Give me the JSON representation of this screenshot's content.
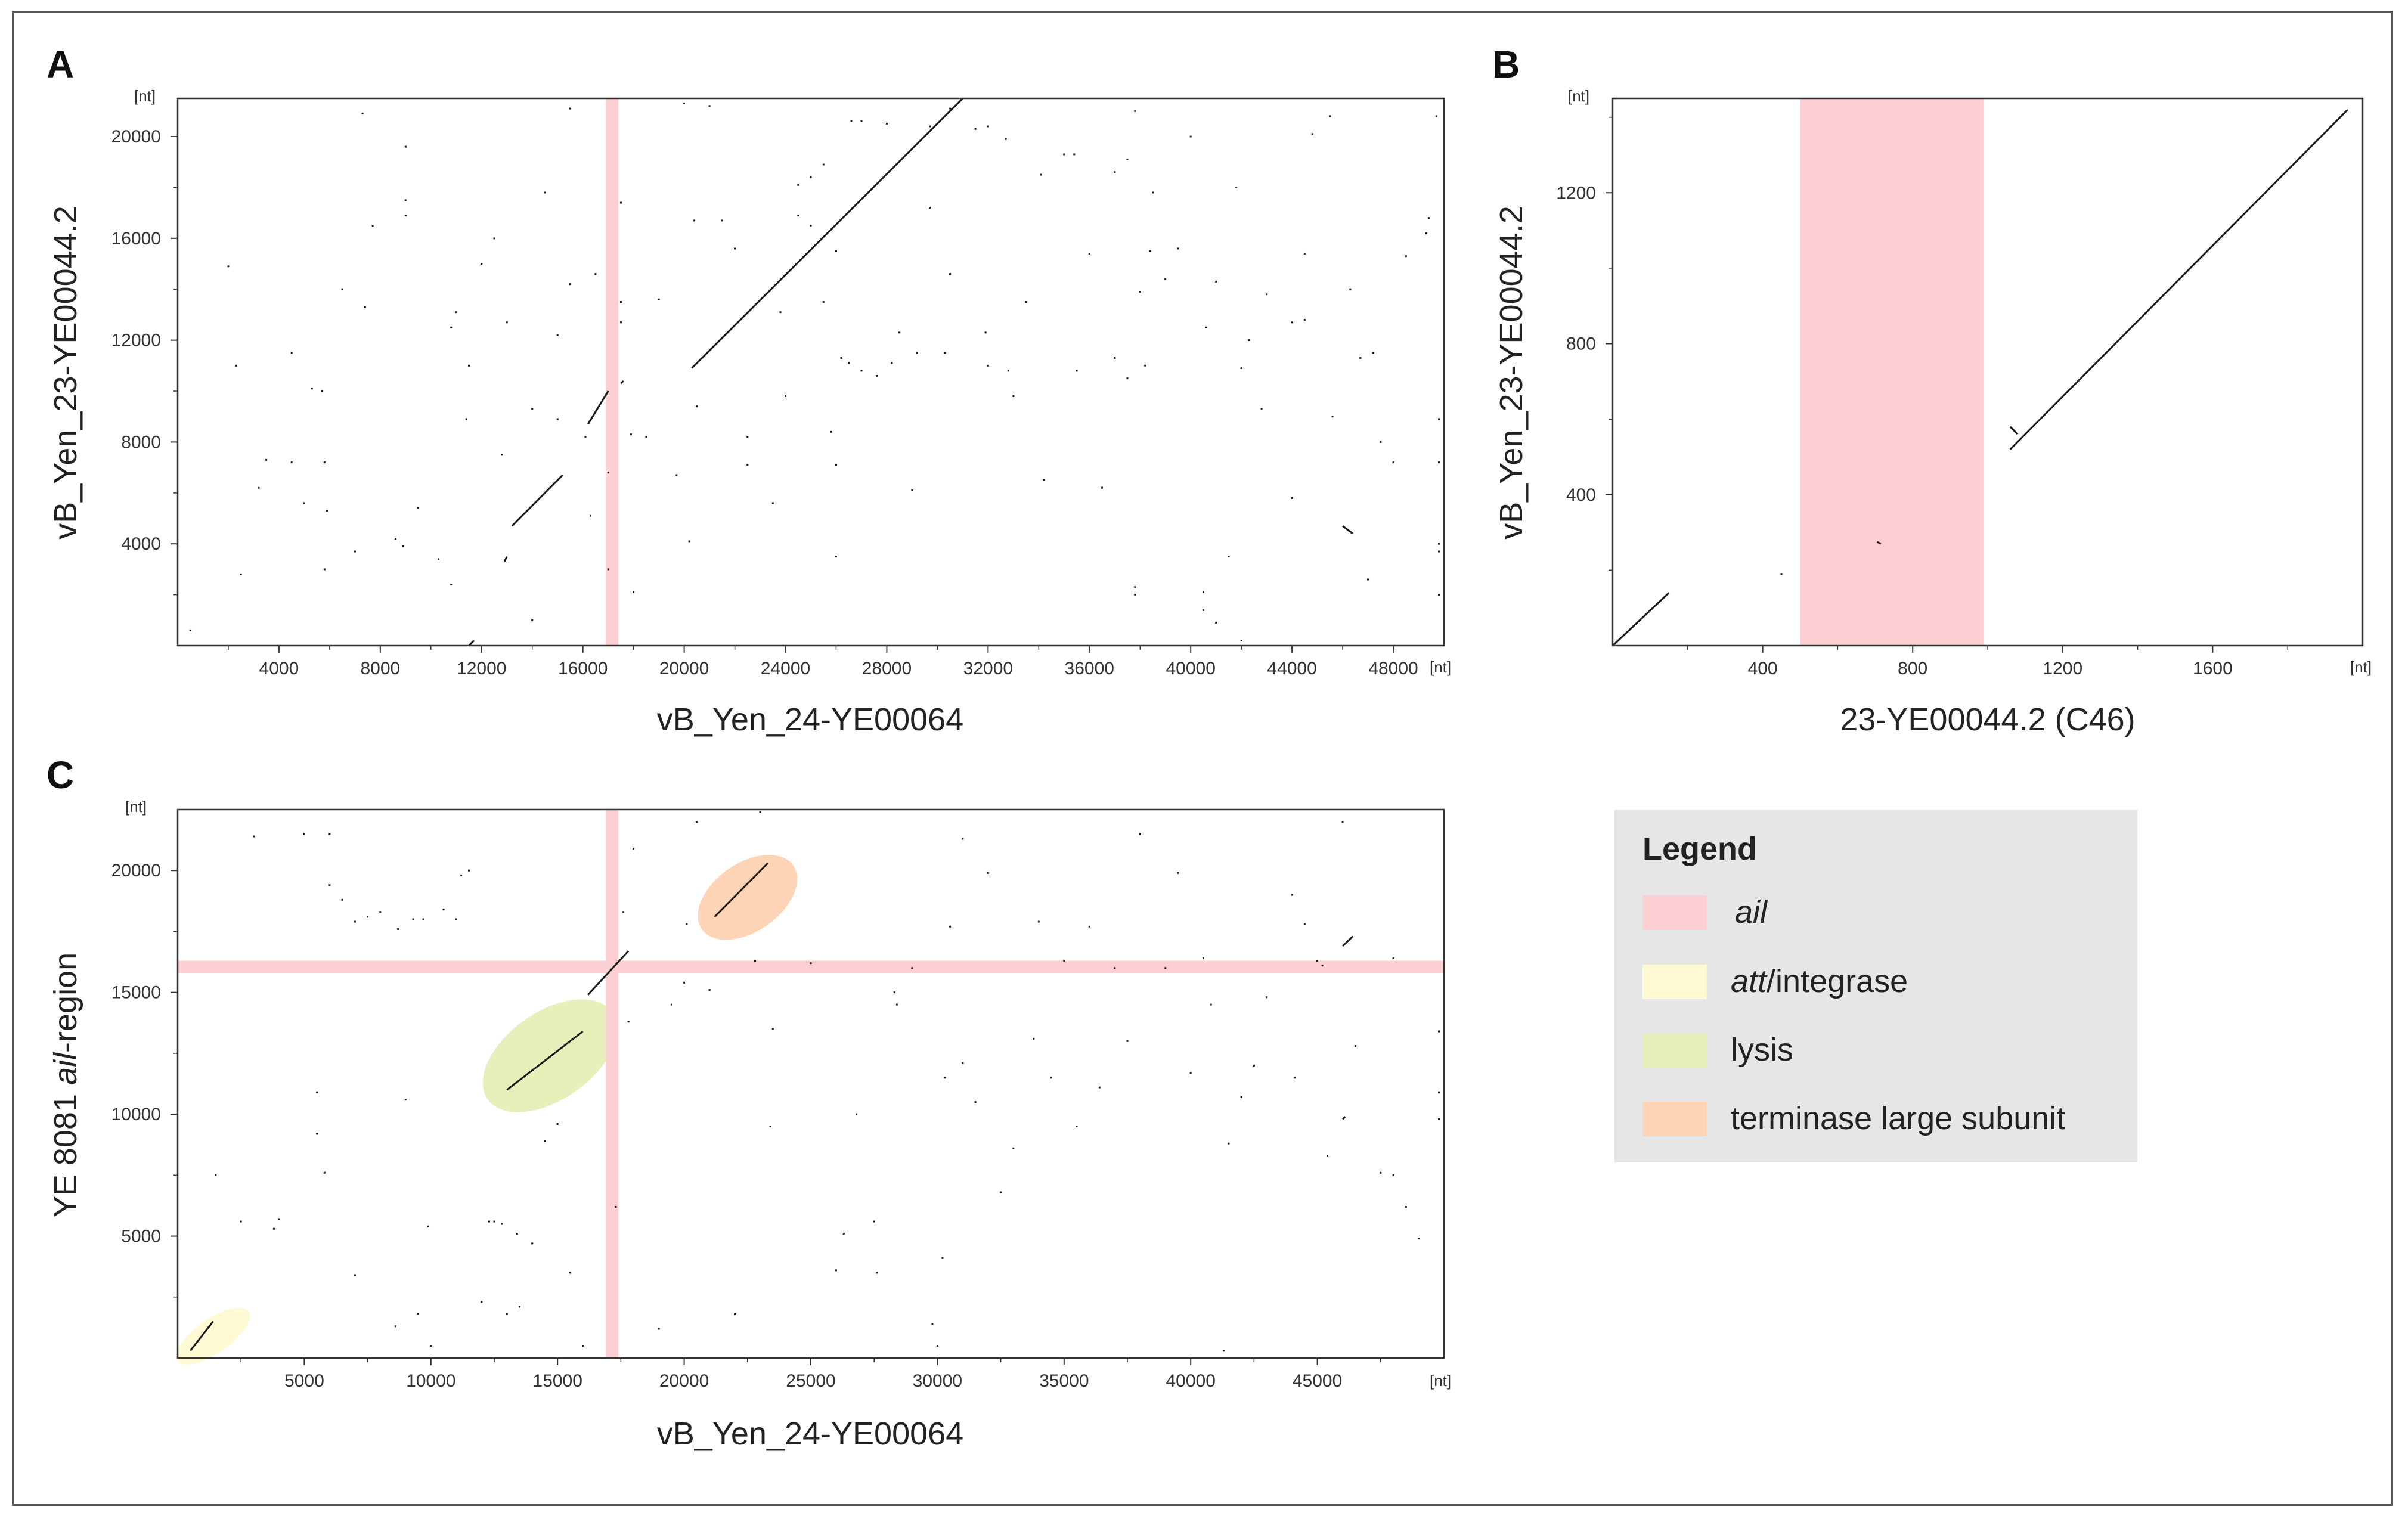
{
  "colors": {
    "ail": "#fccfd3",
    "att_integrase": "#fff9d4",
    "lysis": "#e9efbb",
    "terminase": "#fdd5b6",
    "legend_bg": "#e6e6e6",
    "line": "#1a1a1a"
  },
  "legend": {
    "title": "Legend",
    "items": [
      {
        "key": "ail",
        "label": "ail",
        "italic": true
      },
      {
        "key": "att_integrase",
        "label_italic": "att",
        "label_rest": "/integrase"
      },
      {
        "key": "lysis",
        "label": "lysis"
      },
      {
        "key": "terminase",
        "label": "terminase large subunit"
      }
    ]
  },
  "chart_data": [
    {
      "panel": "A",
      "type": "scatter",
      "title": "",
      "xlabel": "vB_Yen_24-YE00064",
      "ylabel": "vB_Yen_23-YE00044.2",
      "xunit": "[nt]",
      "yunit": "[nt]",
      "xlim": [
        0,
        50000
      ],
      "ylim": [
        0,
        21500
      ],
      "xticks": [
        4000,
        8000,
        12000,
        16000,
        20000,
        24000,
        28000,
        32000,
        36000,
        40000,
        44000,
        48000
      ],
      "yticks": [
        4000,
        8000,
        12000,
        16000,
        20000
      ],
      "regions": [
        {
          "axis": "x",
          "from": 16900,
          "to": 17400,
          "key": "ail"
        }
      ],
      "segments": [
        [
          20300,
          10900,
          31000,
          21500
        ],
        [
          16200,
          8700,
          17000,
          10000
        ],
        [
          13200,
          4700,
          15200,
          6700
        ],
        [
          12900,
          3300,
          13000,
          3500
        ],
        [
          11500,
          0,
          11700,
          200
        ],
        [
          46000,
          4700,
          46400,
          4400
        ],
        [
          17500,
          10300,
          17600,
          10400
        ]
      ],
      "dots": [
        [
          500,
          600
        ],
        [
          2000,
          14900
        ],
        [
          2300,
          11000
        ],
        [
          2500,
          2800
        ],
        [
          3200,
          6200
        ],
        [
          3500,
          7300
        ],
        [
          4500,
          11500
        ],
        [
          4500,
          7200
        ],
        [
          5000,
          5600
        ],
        [
          5300,
          10100
        ],
        [
          5700,
          10000
        ],
        [
          5800,
          3000
        ],
        [
          5900,
          5300
        ],
        [
          5800,
          7200
        ],
        [
          6500,
          14000
        ],
        [
          7000,
          3700
        ],
        [
          7300,
          20900
        ],
        [
          7400,
          13300
        ],
        [
          7700,
          16500
        ],
        [
          8600,
          4200
        ],
        [
          8900,
          3900
        ],
        [
          9000,
          16900
        ],
        [
          9000,
          17500
        ],
        [
          9000,
          19600
        ],
        [
          9500,
          5400
        ],
        [
          10300,
          3400
        ],
        [
          10800,
          2400
        ],
        [
          10800,
          12500
        ],
        [
          11000,
          13100
        ],
        [
          11400,
          8900
        ],
        [
          11500,
          11000
        ],
        [
          12000,
          15000
        ],
        [
          12500,
          16000
        ],
        [
          12800,
          7500
        ],
        [
          13000,
          12700
        ],
        [
          14000,
          9300
        ],
        [
          14000,
          1000
        ],
        [
          14500,
          17800
        ],
        [
          15000,
          12200
        ],
        [
          15000,
          8900
        ],
        [
          15500,
          14200
        ],
        [
          15500,
          21100
        ],
        [
          16100,
          8200
        ],
        [
          16300,
          5100
        ],
        [
          16500,
          14600
        ],
        [
          17000,
          3000
        ],
        [
          17000,
          6800
        ],
        [
          17500,
          13500
        ],
        [
          17500,
          17400
        ],
        [
          17500,
          12700
        ],
        [
          17900,
          8300
        ],
        [
          18000,
          2100
        ],
        [
          18500,
          8200
        ],
        [
          19000,
          13600
        ],
        [
          19700,
          6700
        ],
        [
          20000,
          21300
        ],
        [
          20200,
          4100
        ],
        [
          20400,
          16700
        ],
        [
          20500,
          9400
        ],
        [
          21000,
          21200
        ],
        [
          21500,
          16700
        ],
        [
          22000,
          15600
        ],
        [
          22500,
          8200
        ],
        [
          22500,
          7100
        ],
        [
          23500,
          5600
        ],
        [
          23800,
          13100
        ],
        [
          24000,
          9800
        ],
        [
          24500,
          18100
        ],
        [
          24500,
          16900
        ],
        [
          25000,
          18400
        ],
        [
          25000,
          16500
        ],
        [
          25500,
          18900
        ],
        [
          25500,
          13500
        ],
        [
          25800,
          8400
        ],
        [
          26000,
          3500
        ],
        [
          26000,
          7100
        ],
        [
          26000,
          15500
        ],
        [
          26200,
          11300
        ],
        [
          26500,
          11100
        ],
        [
          26600,
          20600
        ],
        [
          27000,
          20600
        ],
        [
          27000,
          10800
        ],
        [
          27600,
          10600
        ],
        [
          28000,
          20500
        ],
        [
          28200,
          11100
        ],
        [
          28500,
          12300
        ],
        [
          29000,
          6100
        ],
        [
          29200,
          11500
        ],
        [
          29700,
          20400
        ],
        [
          29700,
          17200
        ],
        [
          30300,
          11500
        ],
        [
          30500,
          21100
        ],
        [
          30500,
          14600
        ],
        [
          31500,
          20300
        ],
        [
          31900,
          12300
        ],
        [
          32000,
          11000
        ],
        [
          32000,
          20400
        ],
        [
          32700,
          19900
        ],
        [
          32800,
          10800
        ],
        [
          33000,
          9800
        ],
        [
          33500,
          13500
        ],
        [
          34100,
          18500
        ],
        [
          34200,
          6500
        ],
        [
          35000,
          19300
        ],
        [
          35400,
          19300
        ],
        [
          35500,
          10800
        ],
        [
          36000,
          15400
        ],
        [
          36500,
          6200
        ],
        [
          37000,
          18600
        ],
        [
          37000,
          11300
        ],
        [
          37500,
          19100
        ],
        [
          37500,
          10500
        ],
        [
          37800,
          21000
        ],
        [
          37800,
          2000
        ],
        [
          37800,
          2300
        ],
        [
          38500,
          17800
        ],
        [
          38000,
          13900
        ],
        [
          38200,
          11000
        ],
        [
          38400,
          15500
        ],
        [
          39000,
          14400
        ],
        [
          39500,
          15600
        ],
        [
          40000,
          20000
        ],
        [
          40500,
          2100
        ],
        [
          40500,
          1400
        ],
        [
          40600,
          12500
        ],
        [
          41000,
          14300
        ],
        [
          41000,
          900
        ],
        [
          41500,
          3500
        ],
        [
          41800,
          18000
        ],
        [
          42000,
          10900
        ],
        [
          42000,
          200
        ],
        [
          42300,
          12000
        ],
        [
          42800,
          9300
        ],
        [
          43000,
          13800
        ],
        [
          44000,
          5800
        ],
        [
          44000,
          12700
        ],
        [
          44500,
          15400
        ],
        [
          44500,
          12800
        ],
        [
          44800,
          20100
        ],
        [
          45500,
          20800
        ],
        [
          45600,
          9000
        ],
        [
          46300,
          14000
        ],
        [
          46700,
          11300
        ],
        [
          47000,
          2600
        ],
        [
          47200,
          11500
        ],
        [
          47500,
          8000
        ],
        [
          48000,
          7200
        ],
        [
          48500,
          15300
        ],
        [
          49300,
          16200
        ],
        [
          49800,
          8900
        ],
        [
          49800,
          4000
        ],
        [
          49800,
          3700
        ],
        [
          49800,
          2000
        ],
        [
          49800,
          7200
        ],
        [
          49700,
          20800
        ],
        [
          49400,
          16800
        ]
      ]
    },
    {
      "panel": "B",
      "type": "scatter",
      "title": "",
      "xlabel": "23-YE00044.2 (C46)",
      "ylabel": "vB_Yen_23-YE00044.2",
      "xunit": "[nt]",
      "yunit": "[nt]",
      "xlim": [
        0,
        2000
      ],
      "ylim": [
        0,
        1450
      ],
      "xticks": [
        400,
        800,
        1200,
        1600
      ],
      "yticks": [
        400,
        800,
        1200
      ],
      "regions": [
        {
          "axis": "x",
          "from": 500,
          "to": 990,
          "key": "ail"
        }
      ],
      "segments": [
        [
          0,
          0,
          150,
          140
        ],
        [
          1060,
          520,
          1960,
          1420
        ],
        [
          1060,
          580,
          1080,
          560
        ],
        [
          705,
          275,
          715,
          270
        ]
      ],
      "dots": [
        [
          450,
          190
        ]
      ]
    },
    {
      "panel": "C",
      "type": "scatter",
      "title": "",
      "xlabel": "vB_Yen_24-YE00064",
      "ylabel_prefix": "YE 8081 ",
      "ylabel_italic": "ail",
      "ylabel_suffix": "-region",
      "xunit": "[nt]",
      "yunit": "[nt]",
      "xlim": [
        0,
        50000
      ],
      "ylim": [
        0,
        22500
      ],
      "xticks": [
        5000,
        10000,
        15000,
        20000,
        25000,
        30000,
        35000,
        40000,
        45000
      ],
      "yticks": [
        5000,
        10000,
        15000,
        20000
      ],
      "regions": [
        {
          "axis": "x",
          "from": 16900,
          "to": 17400,
          "key": "ail"
        },
        {
          "axis": "y",
          "from": 15800,
          "to": 16300,
          "key": "ail"
        }
      ],
      "highlights": [
        {
          "key": "att_integrase",
          "cx": 1400,
          "cy": 900,
          "rx": 1700,
          "ry": 700
        },
        {
          "key": "lysis",
          "cx": 14700,
          "cy": 12400,
          "rx": 3000,
          "ry": 1800
        },
        {
          "key": "terminase",
          "cx": 22500,
          "cy": 18900,
          "rx": 2200,
          "ry": 1400
        }
      ],
      "segments": [
        [
          21200,
          18100,
          23300,
          20300
        ],
        [
          13000,
          11000,
          16000,
          13400
        ],
        [
          16200,
          14900,
          17800,
          16700
        ],
        [
          500,
          300,
          1400,
          1500
        ],
        [
          46000,
          16900,
          46400,
          17300
        ],
        [
          46000,
          9800,
          46100,
          9900
        ]
      ],
      "dots": [
        [
          1500,
          7500
        ],
        [
          2500,
          5600
        ],
        [
          3000,
          21400
        ],
        [
          3800,
          5300
        ],
        [
          4000,
          5700
        ],
        [
          5000,
          21500
        ],
        [
          5500,
          10900
        ],
        [
          5500,
          9200
        ],
        [
          5800,
          7600
        ],
        [
          6000,
          21500
        ],
        [
          6000,
          19400
        ],
        [
          6500,
          18800
        ],
        [
          7000,
          17900
        ],
        [
          7000,
          3400
        ],
        [
          7500,
          18100
        ],
        [
          8000,
          18300
        ],
        [
          8600,
          1300
        ],
        [
          8700,
          17600
        ],
        [
          9000,
          10600
        ],
        [
          9300,
          18000
        ],
        [
          9500,
          1800
        ],
        [
          9700,
          18000
        ],
        [
          9900,
          5400
        ],
        [
          10000,
          500
        ],
        [
          10500,
          18400
        ],
        [
          11000,
          18000
        ],
        [
          11200,
          19800
        ],
        [
          11500,
          20000
        ],
        [
          12000,
          2300
        ],
        [
          12300,
          5600
        ],
        [
          12500,
          5600
        ],
        [
          12800,
          5500
        ],
        [
          13000,
          1800
        ],
        [
          13400,
          5100
        ],
        [
          13500,
          2100
        ],
        [
          14000,
          4700
        ],
        [
          14500,
          8900
        ],
        [
          15000,
          9600
        ],
        [
          15500,
          3500
        ],
        [
          16000,
          500
        ],
        [
          17300,
          6200
        ],
        [
          17600,
          18300
        ],
        [
          17800,
          13800
        ],
        [
          18000,
          20900
        ],
        [
          19000,
          1200
        ],
        [
          19500,
          14500
        ],
        [
          20000,
          15400
        ],
        [
          20100,
          17800
        ],
        [
          20500,
          22000
        ],
        [
          21000,
          15100
        ],
        [
          22000,
          1800
        ],
        [
          22800,
          16300
        ],
        [
          23000,
          22400
        ],
        [
          23400,
          9500
        ],
        [
          23500,
          13500
        ],
        [
          25000,
          16200
        ],
        [
          26000,
          3600
        ],
        [
          26300,
          5100
        ],
        [
          26800,
          10000
        ],
        [
          27500,
          5600
        ],
        [
          27600,
          3500
        ],
        [
          28300,
          15000
        ],
        [
          28400,
          14500
        ],
        [
          29000,
          16000
        ],
        [
          29800,
          1400
        ],
        [
          30000,
          500
        ],
        [
          30200,
          4100
        ],
        [
          30300,
          11500
        ],
        [
          30500,
          17700
        ],
        [
          31000,
          12100
        ],
        [
          31000,
          21300
        ],
        [
          31500,
          10500
        ],
        [
          32000,
          19900
        ],
        [
          32500,
          6800
        ],
        [
          33000,
          8600
        ],
        [
          33800,
          13100
        ],
        [
          34000,
          17900
        ],
        [
          34500,
          11500
        ],
        [
          35000,
          16300
        ],
        [
          35500,
          9500
        ],
        [
          36000,
          17700
        ],
        [
          36400,
          11100
        ],
        [
          37000,
          16000
        ],
        [
          37500,
          13000
        ],
        [
          38000,
          21500
        ],
        [
          39000,
          16000
        ],
        [
          39500,
          19900
        ],
        [
          40000,
          11700
        ],
        [
          40500,
          16400
        ],
        [
          40800,
          14500
        ],
        [
          41300,
          300
        ],
        [
          41500,
          8800
        ],
        [
          42000,
          10700
        ],
        [
          42500,
          12000
        ],
        [
          43000,
          14800
        ],
        [
          44000,
          19000
        ],
        [
          44100,
          11500
        ],
        [
          44500,
          17800
        ],
        [
          45000,
          16300
        ],
        [
          45200,
          16100
        ],
        [
          45400,
          8300
        ],
        [
          46000,
          22000
        ],
        [
          46500,
          12800
        ],
        [
          47500,
          7600
        ],
        [
          48000,
          16400
        ],
        [
          48000,
          7500
        ],
        [
          48500,
          6200
        ],
        [
          49000,
          4900
        ],
        [
          49800,
          13400
        ],
        [
          49800,
          10900
        ],
        [
          49800,
          9800
        ]
      ]
    }
  ]
}
